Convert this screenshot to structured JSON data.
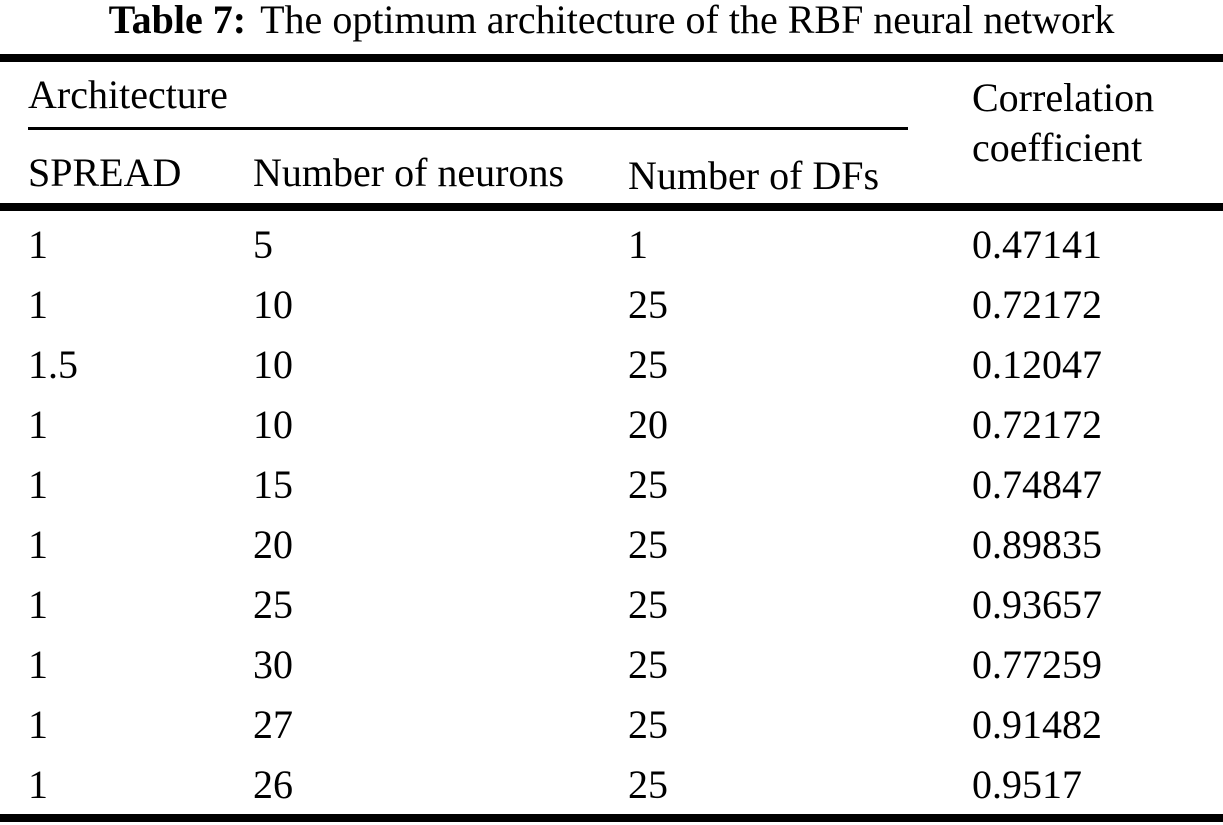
{
  "title": {
    "label": "Table 7:",
    "text": "The optimum architecture of the RBF neural network"
  },
  "table": {
    "group_header": "Architecture",
    "correlation_header": "Correlation coefficient",
    "sub_headers": [
      "SPREAD",
      "Number of neurons",
      "Number of DFs"
    ],
    "rows": [
      [
        "1",
        "5",
        "1",
        "0.47141"
      ],
      [
        "1",
        "10",
        "25",
        "0.72172"
      ],
      [
        "1.5",
        "10",
        "25",
        "0.12047"
      ],
      [
        "1",
        "10",
        "20",
        "0.72172"
      ],
      [
        "1",
        "15",
        "25",
        "0.74847"
      ],
      [
        "1",
        "20",
        "25",
        "0.89835"
      ],
      [
        "1",
        "25",
        "25",
        "0.93657"
      ],
      [
        "1",
        "30",
        "25",
        "0.77259"
      ],
      [
        "1",
        "27",
        "25",
        "0.91482"
      ],
      [
        "1",
        "26",
        "25",
        "0.9517"
      ]
    ]
  },
  "colors": {
    "background": "#ffffff",
    "text": "#000000",
    "rule": "#000000"
  }
}
